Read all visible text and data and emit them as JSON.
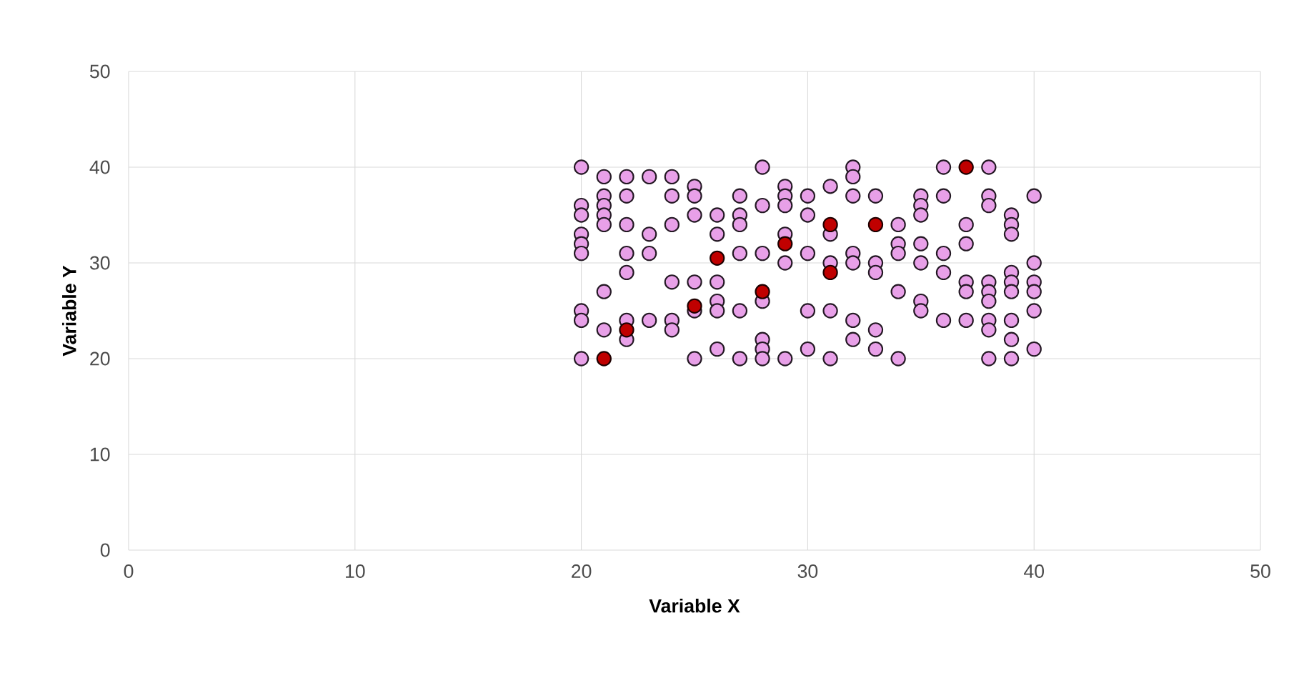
{
  "chart_data": {
    "type": "scatter",
    "xlabel": "Variable X",
    "ylabel": "Variable Y",
    "xlim": [
      0,
      50
    ],
    "ylim": [
      0,
      50
    ],
    "xticks": [
      0,
      10,
      20,
      30,
      40,
      50
    ],
    "yticks": [
      0,
      10,
      20,
      30,
      40,
      50
    ],
    "grid": true,
    "marker": "circle",
    "series": [
      {
        "color": "#e8a0e8",
        "x": [
          20,
          20,
          20,
          20,
          20,
          20,
          20,
          20,
          20,
          21,
          21,
          21,
          21,
          21,
          21,
          21,
          22,
          22,
          22,
          22,
          22,
          22,
          22,
          23,
          23,
          23,
          23,
          24,
          24,
          24,
          24,
          24,
          24,
          25,
          25,
          25,
          25,
          25,
          25,
          26,
          26,
          26,
          26,
          26,
          26,
          27,
          27,
          27,
          27,
          27,
          27,
          28,
          28,
          28,
          28,
          28,
          28,
          28,
          29,
          29,
          29,
          29,
          29,
          29,
          30,
          30,
          30,
          30,
          30,
          31,
          31,
          31,
          31,
          31,
          32,
          32,
          32,
          32,
          32,
          32,
          32,
          33,
          33,
          33,
          33,
          33,
          34,
          34,
          34,
          34,
          34,
          35,
          35,
          35,
          35,
          35,
          35,
          35,
          36,
          36,
          36,
          36,
          36,
          37,
          37,
          37,
          37,
          37,
          38,
          38,
          38,
          38,
          38,
          38,
          38,
          38,
          38,
          39,
          39,
          39,
          39,
          39,
          39,
          39,
          39,
          39,
          40,
          40,
          40,
          40,
          40,
          40
        ],
        "values": [
          40,
          36,
          35,
          33,
          32,
          31,
          25,
          24,
          20,
          39,
          37,
          36,
          35,
          34,
          27,
          23,
          39,
          37,
          34,
          31,
          29,
          24,
          22,
          39,
          33,
          31,
          24,
          39,
          37,
          34,
          28,
          24,
          23,
          38,
          37,
          35,
          28,
          25,
          20,
          35,
          33,
          28,
          26,
          25,
          21,
          37,
          35,
          34,
          31,
          25,
          20,
          40,
          36,
          31,
          26,
          22,
          21,
          20,
          38,
          37,
          36,
          33,
          30,
          20,
          37,
          35,
          31,
          25,
          21,
          38,
          33,
          30,
          25,
          20,
          40,
          39,
          37,
          31,
          30,
          24,
          22,
          37,
          30,
          29,
          23,
          21,
          34,
          32,
          31,
          27,
          20,
          37,
          36,
          35,
          32,
          30,
          26,
          25,
          40,
          37,
          31,
          29,
          24,
          34,
          32,
          28,
          27,
          24,
          40,
          37,
          36,
          28,
          27,
          26,
          24,
          23,
          20,
          35,
          34,
          33,
          29,
          28,
          27,
          24,
          22,
          20,
          37,
          30,
          28,
          27,
          25,
          21
        ]
      },
      {
        "color": "#c00000",
        "x": [
          21,
          22,
          25,
          26,
          28,
          29,
          31,
          31,
          33,
          37
        ],
        "values": [
          20,
          23,
          25.5,
          30.5,
          27,
          32,
          29,
          34,
          34,
          40
        ]
      }
    ]
  }
}
